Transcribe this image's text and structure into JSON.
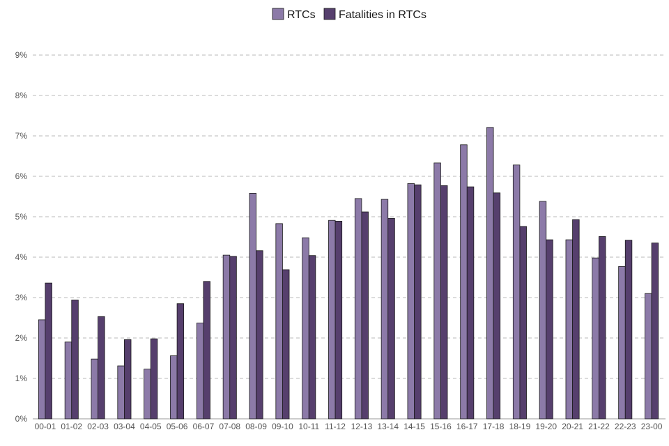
{
  "chart_data": {
    "type": "bar",
    "title": "",
    "xlabel": "",
    "ylabel": "",
    "ylim": [
      0,
      9
    ],
    "y_ticks": [
      0,
      1,
      2,
      3,
      4,
      5,
      6,
      7,
      8,
      9
    ],
    "y_tick_suffix": "%",
    "grid": true,
    "legend_position": "top-center",
    "categories": [
      "00-01",
      "01-02",
      "02-03",
      "03-04",
      "04-05",
      "05-06",
      "06-07",
      "07-08",
      "08-09",
      "09-10",
      "10-11",
      "11-12",
      "12-13",
      "13-14",
      "14-15",
      "15-16",
      "16-17",
      "17-18",
      "18-19",
      "19-20",
      "20-21",
      "21-22",
      "22-23",
      "23-00"
    ],
    "series": [
      {
        "name": "RTCs",
        "color": "#8c7aa8",
        "values": [
          2.45,
          1.9,
          1.48,
          1.31,
          1.23,
          1.56,
          2.37,
          4.05,
          5.58,
          4.83,
          4.48,
          4.91,
          5.45,
          5.43,
          5.82,
          6.33,
          6.78,
          7.21,
          6.28,
          5.38,
          4.43,
          3.98,
          3.77,
          3.1
        ]
      },
      {
        "name": "Fatalities in RTCs",
        "color": "#563f6d",
        "values": [
          3.36,
          2.94,
          2.53,
          1.96,
          1.98,
          2.85,
          3.4,
          4.02,
          4.16,
          3.69,
          4.04,
          4.89,
          5.12,
          4.96,
          5.79,
          5.77,
          5.74,
          5.59,
          4.76,
          4.43,
          4.93,
          4.51,
          4.42,
          4.35
        ]
      }
    ]
  }
}
